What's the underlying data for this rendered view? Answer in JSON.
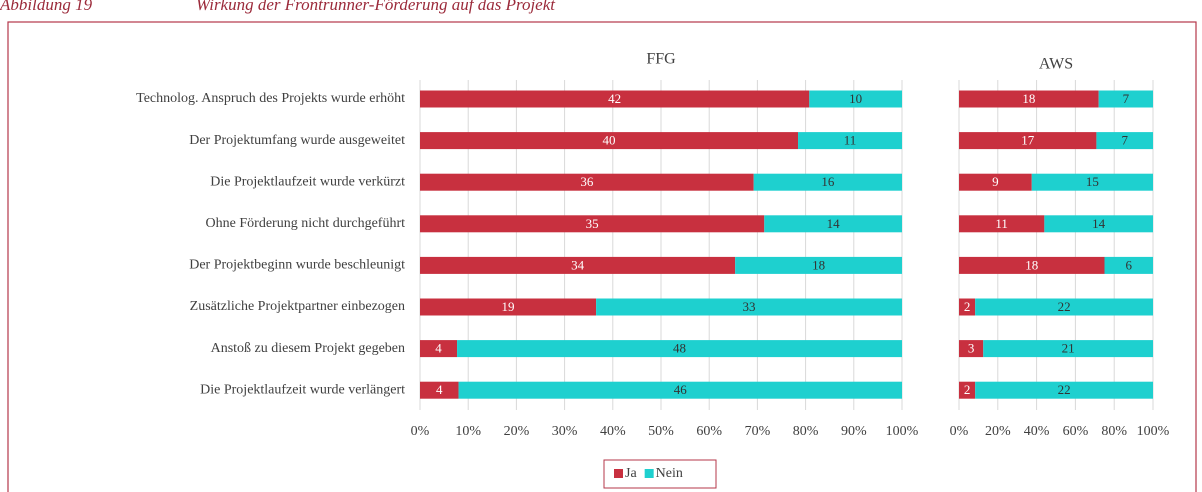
{
  "caption": {
    "number": "Abbildung 19",
    "title": "Wirkung der Frontrunner-Förderung auf das Projekt"
  },
  "chart_data": [
    {
      "type": "bar",
      "orientation": "horizontal",
      "stacking": "percent",
      "title": "FFG",
      "categories": [
        "Technolog. Anspruch des Projekts wurde erhöht",
        "Der Projektumfang wurde ausgeweitet",
        "Die Projektlaufzeit wurde verkürzt",
        "Ohne Förderung  nicht durchgeführt",
        "Der Projektbeginn wurde beschleunigt",
        "Zusätzliche Projektpartner einbezogen",
        "Anstoß zu diesem Projekt gegeben",
        "Die Projektlaufzeit wurde verlängert"
      ],
      "series": [
        {
          "name": "Ja",
          "color": "#c8303f",
          "values": [
            42,
            40,
            36,
            35,
            34,
            19,
            4,
            4
          ]
        },
        {
          "name": "Nein",
          "color": "#1ed0cf",
          "values": [
            10,
            11,
            16,
            14,
            18,
            33,
            48,
            46
          ]
        }
      ],
      "xlim": [
        0,
        100
      ],
      "xticks": [
        {
          "value": 0,
          "label": "0%"
        },
        {
          "value": 10,
          "label": "10%"
        },
        {
          "value": 20,
          "label": "20%"
        },
        {
          "value": 30,
          "label": "30%"
        },
        {
          "value": 40,
          "label": "40%"
        },
        {
          "value": 50,
          "label": "50%"
        },
        {
          "value": 60,
          "label": "60%"
        },
        {
          "value": 70,
          "label": "70%"
        },
        {
          "value": 80,
          "label": "80%"
        },
        {
          "value": 90,
          "label": "90%"
        },
        {
          "value": 100,
          "label": "100%"
        }
      ],
      "grid": true,
      "legend": "bottom"
    },
    {
      "type": "bar",
      "orientation": "horizontal",
      "stacking": "percent",
      "title": "AWS",
      "series": [
        {
          "color": "#c8303f",
          "values": [
            18,
            17,
            9,
            11,
            18,
            2,
            3,
            2
          ]
        },
        {
          "color": "#1ed0cf",
          "values": [
            7,
            7,
            15,
            14,
            6,
            22,
            21,
            22
          ]
        }
      ],
      "xlim": [
        0,
        100
      ],
      "xticks": [
        {
          "value": 0,
          "label": "0%"
        },
        {
          "value": 20,
          "label": "20%"
        },
        {
          "value": 40,
          "label": "40%"
        },
        {
          "value": 60,
          "label": "60%"
        },
        {
          "value": 80,
          "label": "80%"
        },
        {
          "value": 100,
          "label": "100%"
        }
      ],
      "grid": true
    }
  ]
}
